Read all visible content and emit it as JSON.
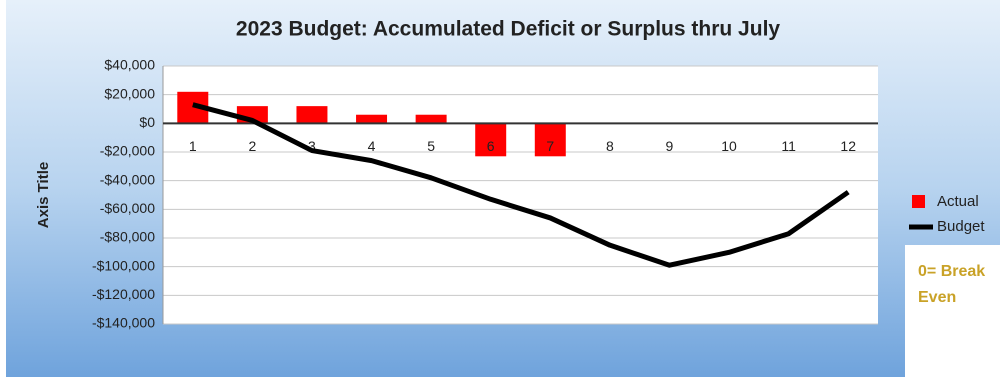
{
  "chart_data": {
    "type": "bar-line",
    "title": "2023 Budget: Accumulated Deficit or Surplus thru July",
    "y_axis_label": "Axis Title",
    "categories": [
      "1",
      "2",
      "3",
      "4",
      "5",
      "6",
      "7",
      "8",
      "9",
      "10",
      "11",
      "12"
    ],
    "series": [
      {
        "name": "Actual",
        "type": "bar",
        "color": "#ff0000",
        "values": [
          22000,
          12000,
          12000,
          6000,
          6000,
          -23000,
          -23000,
          null,
          null,
          null,
          null,
          null
        ]
      },
      {
        "name": "Budget",
        "type": "line",
        "color": "#000000",
        "values": [
          13000,
          2000,
          -19000,
          -26000,
          -38000,
          -53000,
          -66000,
          -85000,
          -99000,
          -90000,
          -77000,
          -48000
        ]
      }
    ],
    "ylim": [
      -140000,
      40000
    ],
    "yticks": [
      {
        "value": -140000,
        "label": "-$140,000"
      },
      {
        "value": -120000,
        "label": "-$120,000"
      },
      {
        "value": -100000,
        "label": "-$100,000"
      },
      {
        "value": -80000,
        "label": "-$80,000"
      },
      {
        "value": -60000,
        "label": "-$60,000"
      },
      {
        "value": -40000,
        "label": "-$40,000"
      },
      {
        "value": -20000,
        "label": "-$20,000"
      },
      {
        "value": 0,
        "label": "$0"
      },
      {
        "value": 20000,
        "label": "$20,000"
      },
      {
        "value": 40000,
        "label": "$40,000"
      }
    ],
    "grid": true,
    "legend": "right",
    "annotation": "0= Break Even"
  }
}
